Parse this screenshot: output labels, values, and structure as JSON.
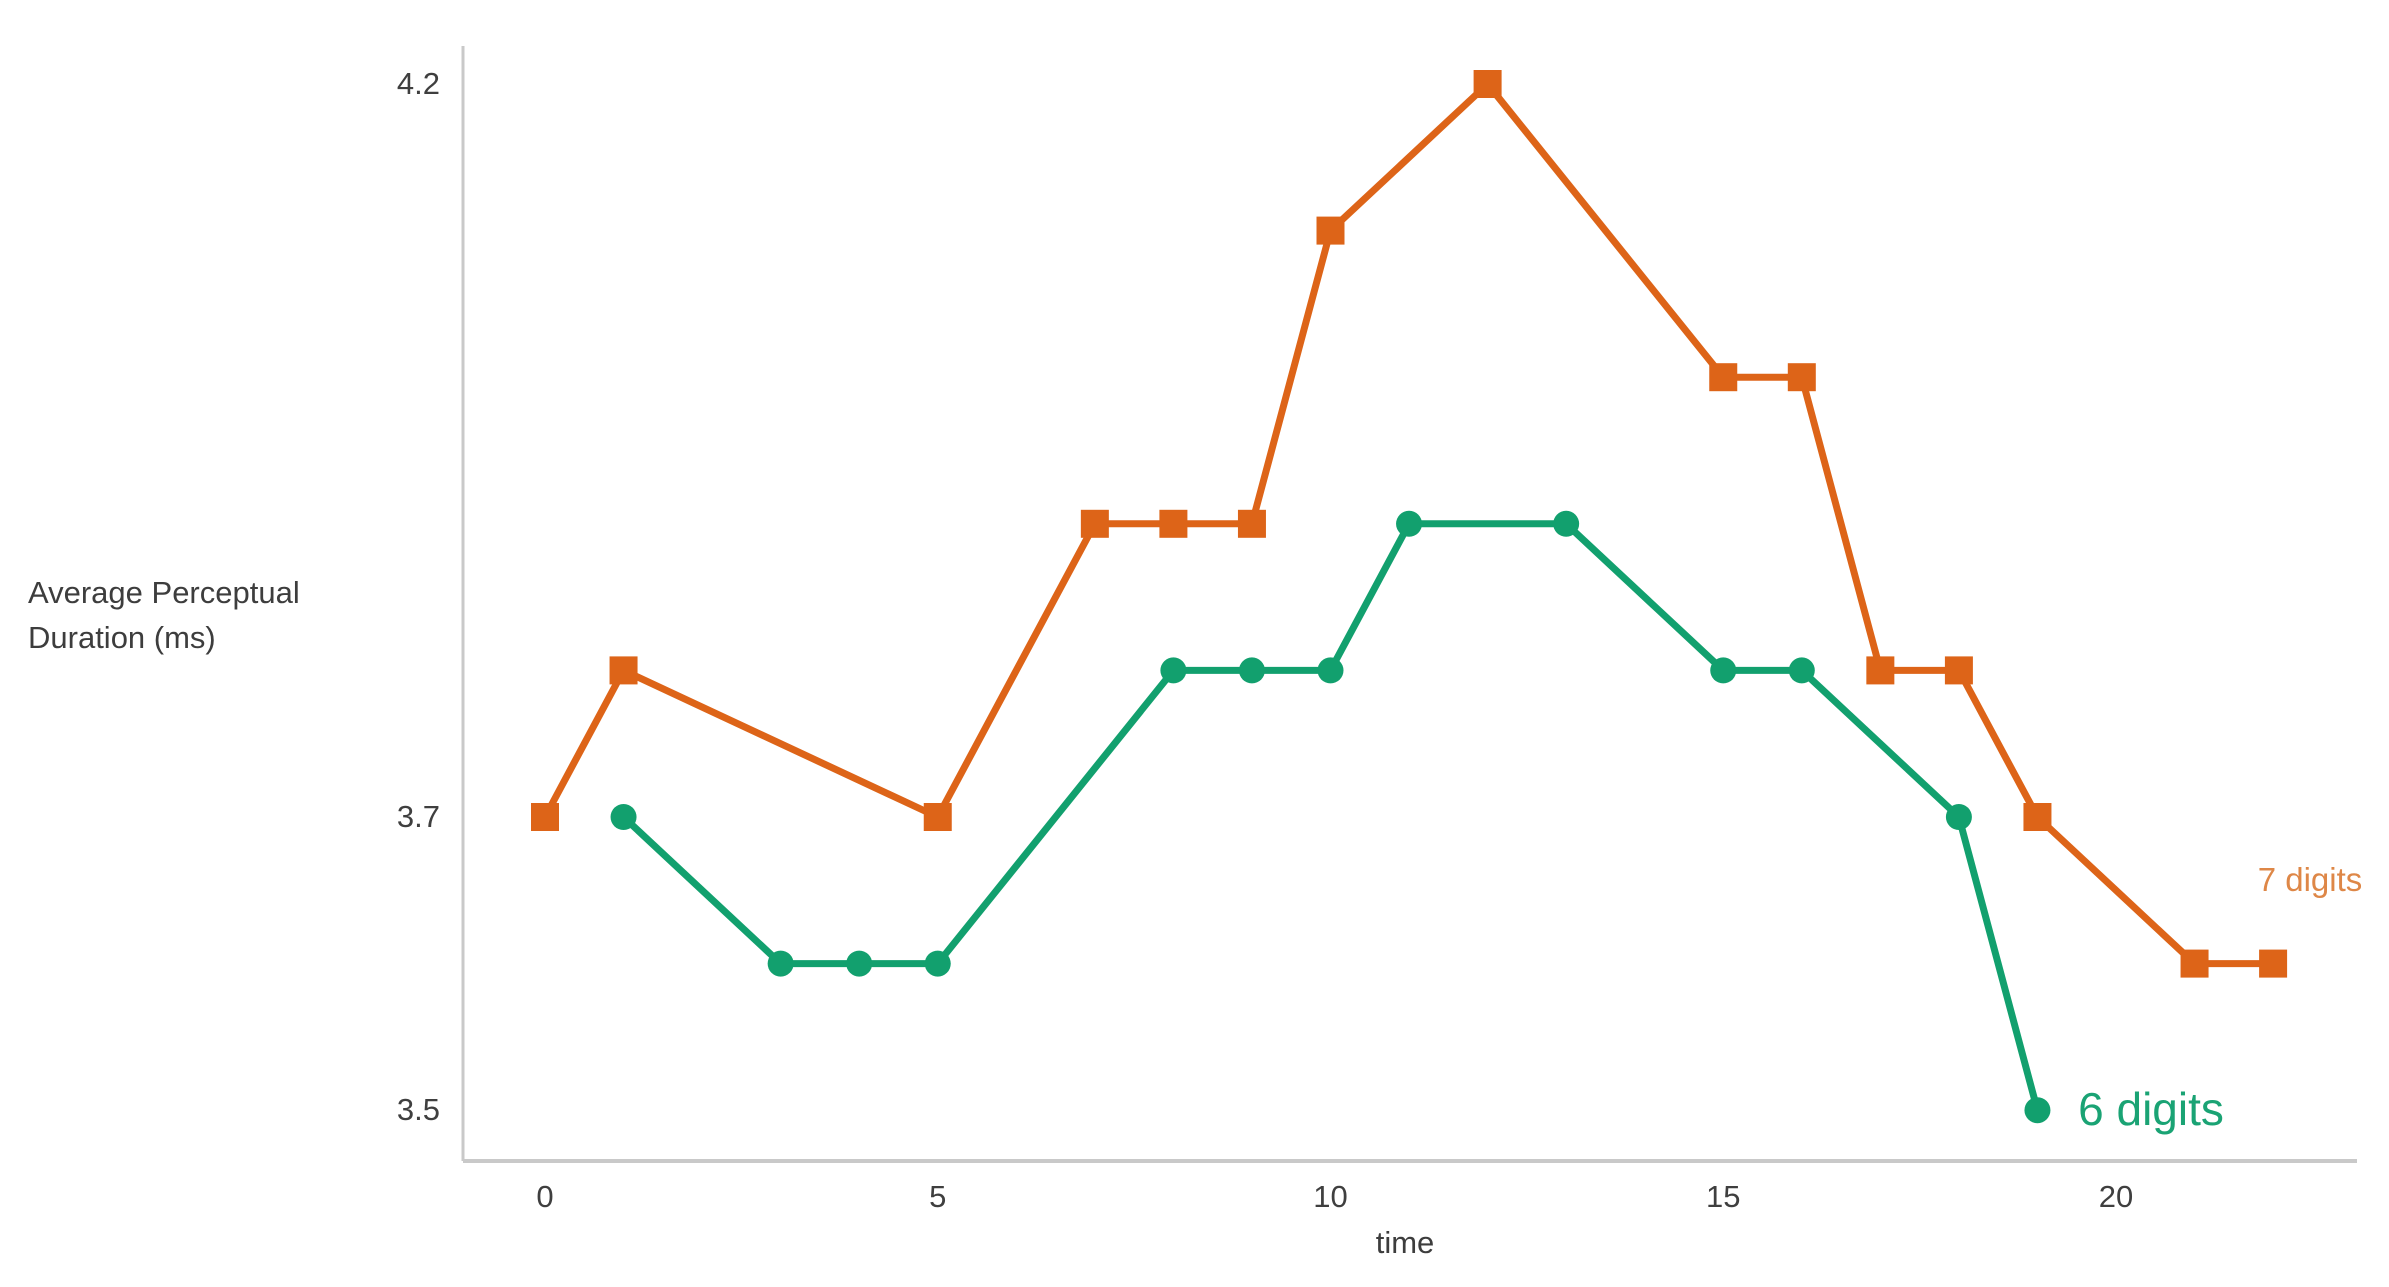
{
  "axes": {
    "y_label": [
      "Average Perceptual",
      "Duration (ms)"
    ],
    "x_label": "time",
    "y_ticks": [
      {
        "value": 4.2,
        "label": "4.2"
      },
      {
        "value": 3.7,
        "label": "3.7"
      },
      {
        "value": 3.5,
        "label": "3.5"
      }
    ],
    "x_ticks": [
      {
        "value": 0,
        "label": "0"
      },
      {
        "value": 5,
        "label": "5"
      },
      {
        "value": 10,
        "label": "10"
      },
      {
        "value": 15,
        "label": "15"
      },
      {
        "value": 20,
        "label": "20"
      }
    ]
  },
  "colors": {
    "axis_line": "#c9c9c9",
    "tick_text": "#3f3f3f",
    "orange_series": "#dd6418",
    "green_series": "#12a06e",
    "orange_label_text": "#de8747",
    "green_label_text": "#1aa374"
  },
  "chart_data": {
    "type": "line",
    "title": "",
    "xlabel": "time",
    "ylabel": "Average Perceptual Duration (ms)",
    "xlim": [
      -1.2,
      23.2
    ],
    "ylim": [
      3.44,
      4.26
    ],
    "grid": false,
    "legend_position": "inline-end-of-line",
    "series": [
      {
        "name": "7 digits",
        "color": "#dd6418",
        "label_color": "#de8747",
        "marker": "square",
        "points": [
          [
            0,
            3.7
          ],
          [
            1,
            3.8
          ],
          [
            5,
            3.7
          ],
          [
            7,
            3.9
          ],
          [
            8,
            3.9
          ],
          [
            9,
            3.9
          ],
          [
            10,
            4.1
          ],
          [
            12,
            4.2
          ],
          [
            15,
            4.0
          ],
          [
            16,
            4.0
          ],
          [
            17,
            3.8
          ],
          [
            18,
            3.8
          ],
          [
            19,
            3.7
          ],
          [
            21,
            3.6
          ],
          [
            22,
            3.6
          ]
        ]
      },
      {
        "name": "6 digits",
        "color": "#12a06e",
        "label_color": "#1aa374",
        "marker": "circle",
        "points": [
          [
            1,
            3.7
          ],
          [
            3,
            3.6
          ],
          [
            4,
            3.6
          ],
          [
            5,
            3.6
          ],
          [
            8,
            3.8
          ],
          [
            9,
            3.8
          ],
          [
            10,
            3.8
          ],
          [
            11,
            3.9
          ],
          [
            13,
            3.9
          ],
          [
            15,
            3.8
          ],
          [
            16,
            3.8
          ],
          [
            18,
            3.7
          ],
          [
            19,
            3.5
          ]
        ]
      }
    ]
  }
}
